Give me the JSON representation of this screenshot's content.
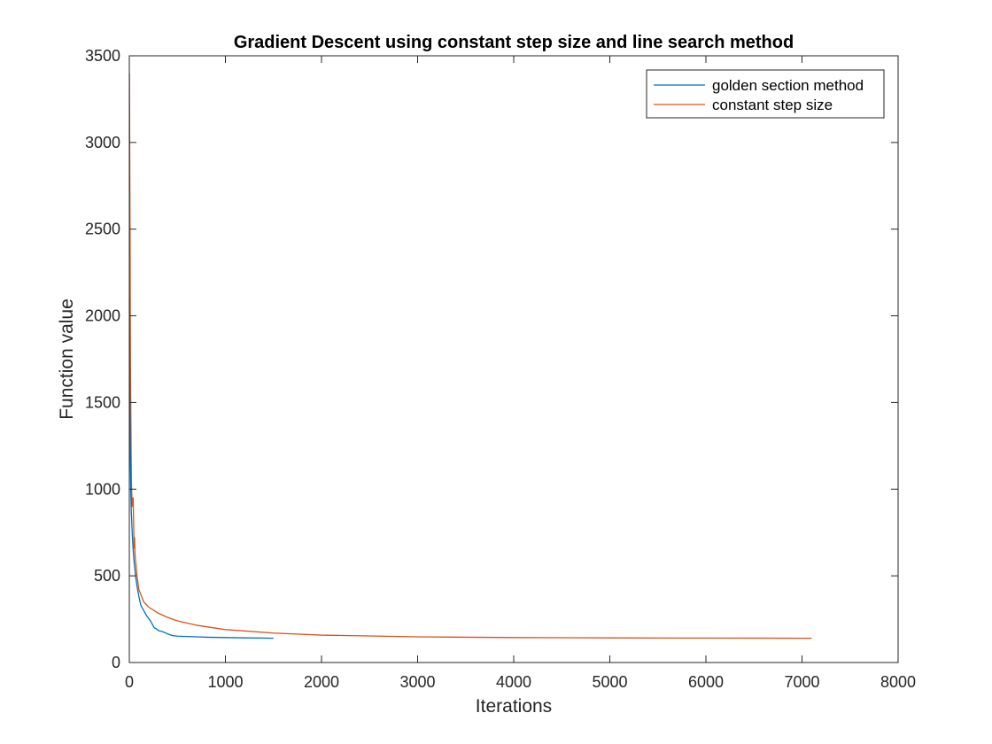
{
  "chart_data": {
    "type": "line",
    "title": "Gradient Descent using constant step size and line search method",
    "xlabel": "Iterations",
    "ylabel": "Function value",
    "xlim": [
      0,
      8000
    ],
    "ylim": [
      0,
      3500
    ],
    "xticks": [
      0,
      1000,
      2000,
      3000,
      4000,
      5000,
      6000,
      7000,
      8000
    ],
    "yticks": [
      0,
      500,
      1000,
      1500,
      2000,
      2500,
      3000,
      3500
    ],
    "grid": false,
    "box": true,
    "legend_position": "top-right",
    "series": [
      {
        "name": "golden section method",
        "color": "#0072BD",
        "x": [
          1,
          3,
          6,
          10,
          15,
          20,
          30,
          40,
          50,
          65,
          80,
          100,
          120,
          150,
          180,
          200,
          220,
          240,
          260,
          280,
          300,
          330,
          360,
          400,
          450,
          500,
          600,
          700,
          800,
          1000,
          1200,
          1400,
          1500
        ],
        "y": [
          2100,
          1700,
          1500,
          1200,
          1000,
          880,
          750,
          650,
          580,
          500,
          440,
          380,
          330,
          300,
          270,
          255,
          240,
          220,
          200,
          195,
          185,
          180,
          175,
          165,
          155,
          152,
          150,
          148,
          146,
          144,
          142,
          141,
          140
        ]
      },
      {
        "name": "constant step size",
        "color": "#D95319",
        "x": [
          1,
          3,
          5,
          8,
          10,
          12,
          15,
          18,
          20,
          22,
          25,
          28,
          30,
          35,
          40,
          45,
          50,
          55,
          60,
          70,
          80,
          90,
          100,
          150,
          200,
          300,
          400,
          500,
          700,
          1000,
          1500,
          2000,
          3000,
          4000,
          5000,
          6000,
          7000,
          7100
        ],
        "y": [
          3400,
          3100,
          2800,
          2400,
          2000,
          1700,
          1500,
          1300,
          1150,
          1050,
          980,
          940,
          900,
          930,
          950,
          800,
          660,
          720,
          620,
          560,
          500,
          460,
          420,
          350,
          320,
          285,
          260,
          240,
          215,
          190,
          170,
          158,
          148,
          144,
          142,
          141,
          140,
          140
        ]
      }
    ]
  }
}
